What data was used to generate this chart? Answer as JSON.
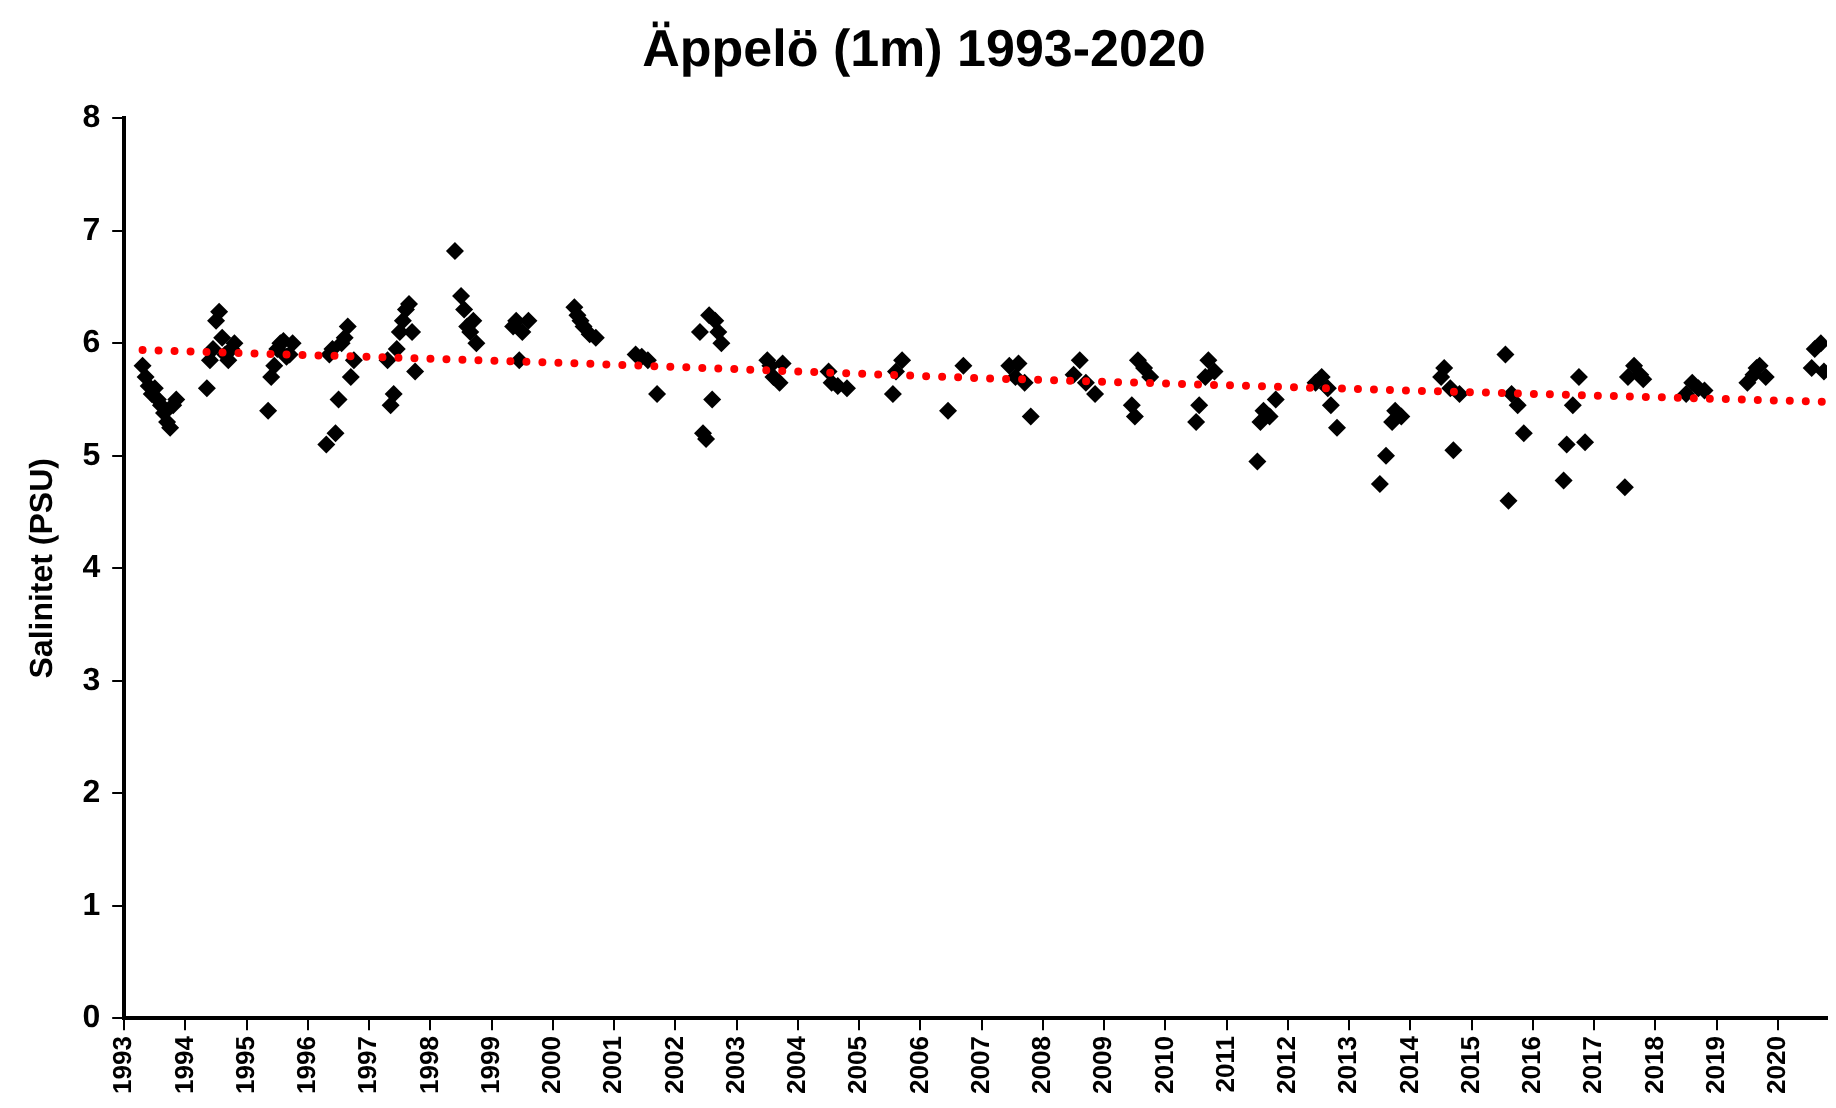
{
  "chart_data": {
    "type": "scatter",
    "title": "Äppelö (1m) 1993-2020",
    "ylabel": "Salinitet (PSU)",
    "xlim": [
      1993,
      2020.8
    ],
    "xticks": [
      1993,
      1994,
      1995,
      1996,
      1997,
      1998,
      1999,
      2000,
      2001,
      2002,
      2003,
      2004,
      2005,
      2006,
      2007,
      2008,
      2009,
      2010,
      2011,
      2012,
      2013,
      2014,
      2015,
      2016,
      2017,
      2018,
      2019,
      2020
    ],
    "ylim": [
      0,
      8
    ],
    "yticks": [
      0,
      1,
      2,
      3,
      4,
      5,
      6,
      7,
      8
    ],
    "grid": false,
    "legend": false,
    "series": [
      {
        "color": "#000000",
        "marker": "diamond",
        "x": [
          1993.3,
          1993.35,
          1993.4,
          1993.45,
          1993.5,
          1993.55,
          1993.6,
          1993.65,
          1993.7,
          1993.75,
          1993.8,
          1993.85,
          1994.35,
          1994.4,
          1994.45,
          1994.5,
          1994.55,
          1994.6,
          1994.65,
          1994.7,
          1994.75,
          1994.8,
          1995.35,
          1995.4,
          1995.45,
          1995.5,
          1995.55,
          1995.6,
          1995.65,
          1995.7,
          1995.75,
          1996.3,
          1996.35,
          1996.4,
          1996.45,
          1996.5,
          1996.55,
          1996.6,
          1996.65,
          1996.7,
          1996.75,
          1997.3,
          1997.35,
          1997.4,
          1997.45,
          1997.5,
          1997.55,
          1997.6,
          1997.65,
          1997.7,
          1997.75,
          1998.4,
          1998.5,
          1998.55,
          1998.6,
          1998.65,
          1998.7,
          1998.75,
          1999.35,
          1999.4,
          1999.45,
          1999.5,
          1999.6,
          2000.35,
          2000.4,
          2000.45,
          2000.5,
          2000.6,
          2000.7,
          2001.35,
          2001.45,
          2001.55,
          2001.7,
          2002.4,
          2002.45,
          2002.5,
          2002.55,
          2002.6,
          2002.65,
          2002.7,
          2002.75,
          2003.5,
          2003.55,
          2003.6,
          2003.7,
          2003.75,
          2004.5,
          2004.55,
          2004.65,
          2004.8,
          2005.55,
          2005.6,
          2005.7,
          2006.45,
          2006.7,
          2007.45,
          2007.55,
          2007.6,
          2007.7,
          2007.8,
          2008.5,
          2008.6,
          2008.7,
          2008.85,
          2009.45,
          2009.5,
          2009.55,
          2009.65,
          2009.75,
          2010.5,
          2010.55,
          2010.65,
          2010.7,
          2010.8,
          2011.5,
          2011.55,
          2011.6,
          2011.7,
          2011.8,
          2012.45,
          2012.55,
          2012.65,
          2012.7,
          2012.8,
          2013.5,
          2013.6,
          2013.7,
          2013.75,
          2013.85,
          2014.5,
          2014.55,
          2014.65,
          2014.7,
          2014.8,
          2015.55,
          2015.6,
          2015.65,
          2015.75,
          2015.85,
          2016.5,
          2016.55,
          2016.65,
          2016.75,
          2016.85,
          2017.5,
          2017.55,
          2017.65,
          2017.75,
          2017.8,
          2018.5,
          2018.6,
          2018.7,
          2018.8,
          2019.5,
          2019.6,
          2019.65,
          2019.7,
          2019.8,
          2020.55,
          2020.6,
          2020.7,
          2020.75
        ],
        "values": [
          5.8,
          5.7,
          5.62,
          5.55,
          5.6,
          5.5,
          5.45,
          5.38,
          5.3,
          5.25,
          5.45,
          5.5,
          5.6,
          5.85,
          5.95,
          6.2,
          6.28,
          6.05,
          5.9,
          5.85,
          5.95,
          6.0,
          5.4,
          5.7,
          5.8,
          5.95,
          6.0,
          6.02,
          5.88,
          5.9,
          6.0,
          5.1,
          5.9,
          5.95,
          5.2,
          5.5,
          6.0,
          6.05,
          6.15,
          5.7,
          5.85,
          5.85,
          5.45,
          5.55,
          5.95,
          6.1,
          6.2,
          6.3,
          6.35,
          6.1,
          5.75,
          6.82,
          6.42,
          6.3,
          6.15,
          6.1,
          6.2,
          6.0,
          6.15,
          6.2,
          5.85,
          6.1,
          6.2,
          6.32,
          6.25,
          6.2,
          6.15,
          6.08,
          6.05,
          5.9,
          5.88,
          5.85,
          5.55,
          6.1,
          5.2,
          5.15,
          6.25,
          5.5,
          6.2,
          6.1,
          6.0,
          5.85,
          5.8,
          5.7,
          5.65,
          5.82,
          5.75,
          5.65,
          5.62,
          5.6,
          5.55,
          5.75,
          5.85,
          5.4,
          5.8,
          5.8,
          5.7,
          5.82,
          5.65,
          5.35,
          5.72,
          5.85,
          5.65,
          5.55,
          5.45,
          5.35,
          5.85,
          5.78,
          5.7,
          5.3,
          5.45,
          5.7,
          5.85,
          5.75,
          4.95,
          5.3,
          5.4,
          5.35,
          5.5,
          5.65,
          5.7,
          5.6,
          5.45,
          5.25,
          4.75,
          5.0,
          5.3,
          5.4,
          5.35,
          5.7,
          5.78,
          5.6,
          5.05,
          5.55,
          5.9,
          4.6,
          5.55,
          5.45,
          5.2,
          4.78,
          5.1,
          5.45,
          5.7,
          5.12,
          4.72,
          5.7,
          5.8,
          5.72,
          5.68,
          5.55,
          5.65,
          5.6,
          5.58,
          5.65,
          5.72,
          5.78,
          5.8,
          5.7,
          5.78,
          5.95,
          6.0,
          5.75
        ]
      },
      {
        "type": "line",
        "color": "#ff0000",
        "marker": "none",
        "line_style": "dotted",
        "x": [
          1993.3,
          2000,
          2007,
          2014,
          2020.8
        ],
        "values": [
          5.94,
          5.83,
          5.69,
          5.58,
          5.48
        ]
      }
    ]
  }
}
